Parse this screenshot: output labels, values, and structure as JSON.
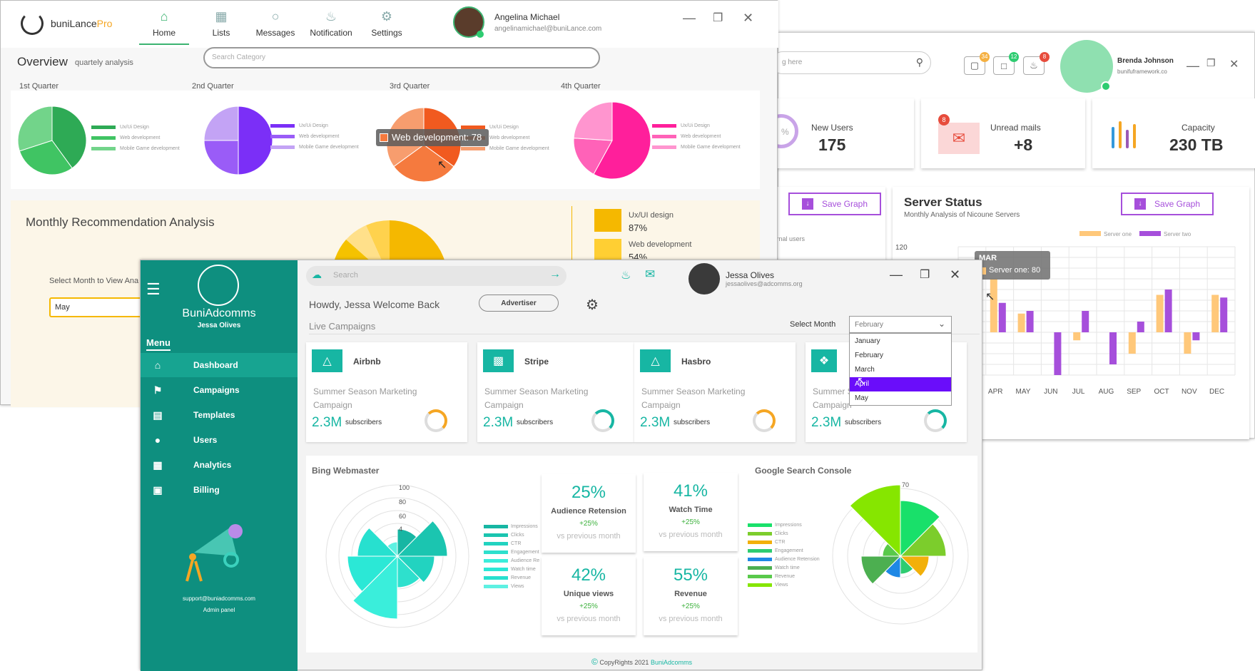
{
  "bluelance": {
    "search_placeholder": "g here",
    "badges": [
      "34",
      "12",
      "8"
    ],
    "user_name": "Brenda Johnson",
    "user_email": "bunifuframework.co",
    "cards": [
      {
        "label": "New Users",
        "value": "175",
        "ring_text": "%"
      },
      {
        "label": "Unread mails",
        "value": "+8",
        "badge": "8"
      },
      {
        "label": "Capacity",
        "value": "230 TB"
      }
    ],
    "save_graph_label": "Save Graph",
    "save_graph_label_2": "Save Graph",
    "users_fragment": "ternal users",
    "server_status_title": "Server Status",
    "server_status_subtitle": "Monthly Analysis of Nicoune Servers",
    "tooltip_month": "MAR",
    "tooltip_value": "Server one: 80",
    "colors": {
      "server_one": "#ffc87a",
      "server_two": "#a64fdb"
    }
  },
  "chart_data": [
    {
      "type": "bar",
      "title": "Server Status",
      "subtitle": "Monthly Analysis of Nicoune Servers",
      "categories": [
        "MAR",
        "APR",
        "MAY",
        "JUN",
        "JUL",
        "AUG",
        "SEP",
        "OCT",
        "NOV",
        "DEC"
      ],
      "series": [
        {
          "name": "Server one",
          "values": [
            80,
            100,
            35,
            0,
            -15,
            0,
            -40,
            70,
            -40,
            70
          ]
        },
        {
          "name": "Server two",
          "values": [
            -45,
            55,
            40,
            -80,
            40,
            -60,
            20,
            80,
            -15,
            65
          ]
        }
      ],
      "ytick_top": "120"
    },
    {
      "type": "pie",
      "title": "1st Quarter",
      "categories": [
        "Ux/Ui Design",
        "Web development",
        "Mobile Game development"
      ]
    },
    {
      "type": "pie",
      "title": "3rd Quarter",
      "tooltip": "Web development: 78"
    },
    {
      "type": "radar",
      "title": "Bing Webmaster",
      "ticks": [
        "100",
        "80",
        "60",
        "4"
      ],
      "categories": [
        "Impressions",
        "Clicks",
        "CTR",
        "Engagement",
        "Audience Re",
        "Watch time",
        "Revenue",
        "Views"
      ]
    },
    {
      "type": "radar",
      "title": "Google Search Console",
      "ticks": [
        "70"
      ],
      "categories": [
        "Impressions",
        "Clicks",
        "CTR",
        "Engagement",
        "Audience Retension",
        "Watch time",
        "Revenue",
        "Views"
      ]
    }
  ],
  "bunilance": {
    "logo_text": "buniLance",
    "logo_accent": "Pro",
    "nav": [
      "Home",
      "Lists",
      "Messages",
      "Notification",
      "Settings"
    ],
    "user_name": "Angelina Michael",
    "user_email": "angelinamichael@buniLance.com",
    "overview_title": "Overview",
    "overview_sub": "quartely analysis",
    "search_placeholder": "Search Category",
    "quarters": [
      "1st Quarter",
      "2nd Quarter",
      "3rd Quarter",
      "4th Quarter"
    ],
    "legend": [
      "Ux/Ui Design",
      "Web development",
      "Mobile Game development"
    ],
    "legend_3": [
      "Ux/Ui Design",
      "Web development",
      "Mobile Game development"
    ],
    "tooltip": "Web development: 78",
    "monthly_title": "Monthly Recommendation Analysis",
    "select_month_label": "Select Month to View Ana",
    "select_value": "May",
    "side_legend": [
      {
        "label": "Ux/UI design",
        "value": "87%"
      },
      {
        "label": "Web development",
        "value": "54%"
      }
    ]
  },
  "buniadcomms": {
    "brand": "BuniAdcomms",
    "brand_user": "Jessa Olives",
    "menu_label": "Menu",
    "menu": [
      "Dashboard",
      "Campaigns",
      "Templates",
      "Users",
      "Analytics",
      "Billing"
    ],
    "support_email": "support@buniadcomms.com",
    "admin_panel": "Admin panel",
    "search_placeholder": "Search",
    "user_name": "Jessa Olives",
    "user_email": "jessaolives@adcomms.org",
    "greeting": "Howdy, Jessa Welcome Back",
    "advertiser_label": "Advertiser",
    "live_campaigns": "Live Campaigns",
    "select_month_label": "Select Month",
    "select_value": "February",
    "month_options": [
      "January",
      "February",
      "March",
      "April",
      "May"
    ],
    "campaigns": [
      {
        "name": "Airbnb",
        "desc": "Summer Season Marketing Campaign",
        "count": "2.3M",
        "sub": "subscribers",
        "ring_color": "#f5a623"
      },
      {
        "name": "Stripe",
        "desc": "Summer Season Marketing Campaign",
        "count": "2.3M",
        "sub": "subscribers",
        "ring_color": "#17b6a3"
      },
      {
        "name": "Hasbro",
        "desc": "Summer Season Marketing Campaign",
        "count": "2.3M",
        "sub": "subscribers",
        "ring_color": "#f5a623"
      },
      {
        "name": "",
        "desc": "Summer Season Marketing Campaign",
        "count": "2.3M",
        "sub": "subscribers",
        "ring_color": "#17b6a3"
      }
    ],
    "bing_title": "Bing Webmaster",
    "google_title": "Google Search Console",
    "stats": [
      {
        "value": "25%",
        "label": "Audience Retension",
        "change": "+25%",
        "note": "vs previous month"
      },
      {
        "value": "41%",
        "label": "Watch Time",
        "change": "+25%",
        "note": "vs previous month"
      },
      {
        "value": "42%",
        "label": "Unique views",
        "change": "+25%",
        "note": "vs previous month"
      },
      {
        "value": "55%",
        "label": "Revenue",
        "change": "+25%",
        "note": "vs previous month"
      }
    ],
    "footer_text": "CopyRights 2021",
    "footer_brand": "BuniAdcomms",
    "accent": "#17b6a3"
  }
}
